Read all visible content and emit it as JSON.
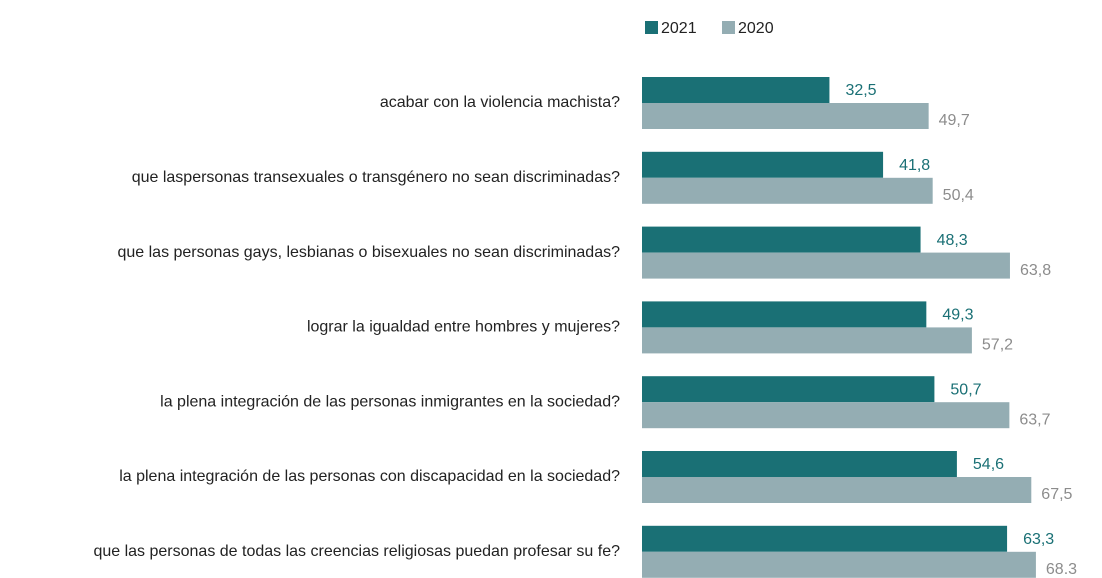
{
  "chart_data": {
    "type": "hbar",
    "categories": [
      "acabar con la violencia machista?",
      "que laspersonas transexuales o transgénero no sean discriminadas?",
      "que las personas gays, lesbianas o bisexuales no sean discriminadas?",
      "lograr la igualdad entre hombres y mujeres?",
      "la plena integración de las personas inmigrantes en la sociedad?",
      "la plena integración de las personas con discapacidad en la sociedad?",
      "que las personas de todas las creencias religiosas puedan profesar su fe?"
    ],
    "series": [
      {
        "name": "2021",
        "color": "#1a7075",
        "label_color": "#1a7075",
        "values": [
          32.5,
          41.8,
          48.3,
          49.3,
          50.7,
          54.6,
          63.3
        ],
        "value_labels": [
          "32,5",
          "41,8",
          "48,3",
          "49,3",
          "50,7",
          "54,6",
          "63,3"
        ]
      },
      {
        "name": "2020",
        "color": "#94adb3",
        "label_color": "#8c8c8c",
        "values": [
          49.7,
          50.4,
          63.8,
          57.2,
          63.7,
          67.5,
          68.3
        ],
        "value_labels": [
          "49,7",
          "50,4",
          "63,8",
          "57,2",
          "63,7",
          "67,5",
          "68.3"
        ]
      }
    ],
    "legend": "top"
  }
}
